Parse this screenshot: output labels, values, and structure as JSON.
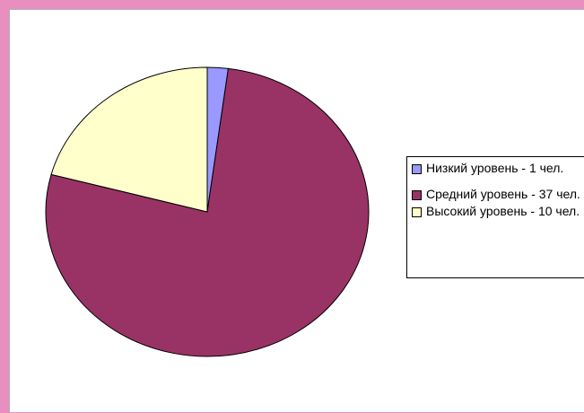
{
  "chart_data": {
    "type": "pie",
    "slices": [
      {
        "label": "Низкий уровень - 1 чел.",
        "value": 1,
        "color": "#9999ff"
      },
      {
        "label": "Средний уровень - 37 чел.",
        "value": 37,
        "color": "#993366"
      },
      {
        "label": "Высокий уровень - 10 чел.",
        "value": 10,
        "color": "#ffffcc"
      }
    ],
    "legend_position": "right",
    "title": ""
  }
}
